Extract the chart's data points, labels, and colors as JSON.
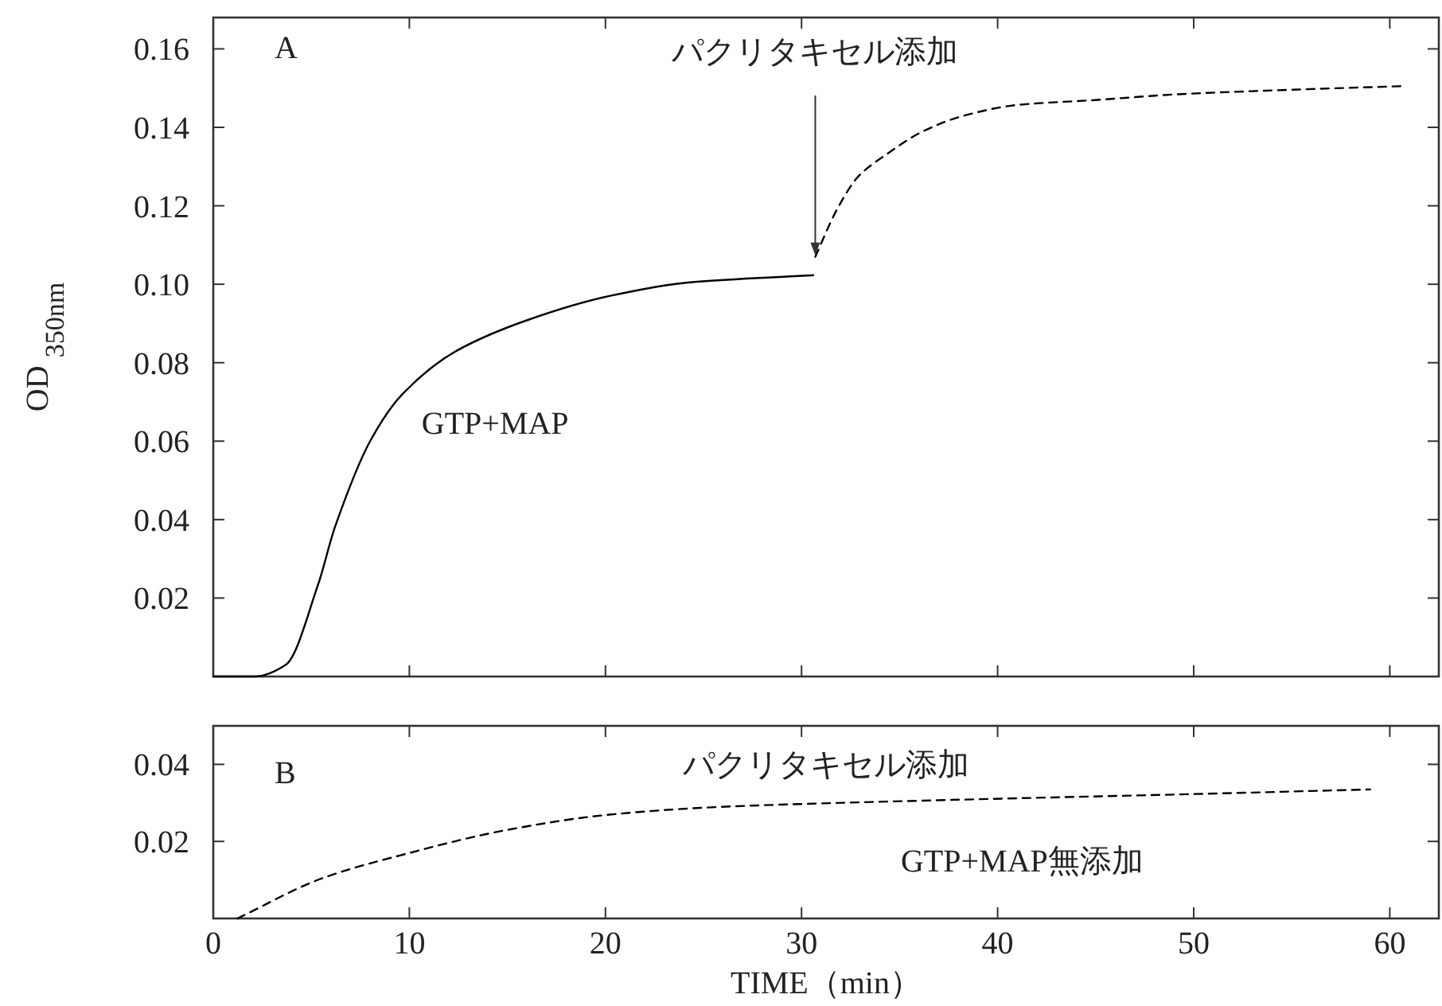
{
  "chart_data": [
    {
      "type": "line",
      "ylabel": "OD $_{350nm}$",
      "xlim": [
        0,
        62.5
      ],
      "ylim": [
        0,
        0.168
      ],
      "xticks": [
        {
          "value": 10,
          "label": null
        },
        {
          "value": 20,
          "label": null
        },
        {
          "value": 30,
          "label": null
        },
        {
          "value": 40,
          "label": null
        },
        {
          "value": 50,
          "label": null
        },
        {
          "value": 60,
          "label": null
        }
      ],
      "yticks": [
        0.02,
        0.04,
        0.06,
        0.08,
        {
          "value": 0.1,
          "label": "0.10"
        },
        0.12,
        0.14,
        0.16
      ],
      "tick_labels": "y",
      "series": [
        {
          "color": "#000000",
          "line_style": "solid",
          "x": [
            0,
            2.1,
            3.7,
            5.35,
            6.2,
            8.0,
            9.65,
            12.4,
            16.1,
            20.2,
            24.3,
            30.6
          ],
          "values": [
            0,
            0,
            0.003,
            0.0235,
            0.038,
            0.06,
            0.072,
            0.083,
            0.091,
            0.097,
            0.1005,
            0.1023
          ]
        },
        {
          "color": "#000000",
          "line_style": "dashed",
          "x": [
            30.7,
            31.8,
            32.9,
            34.3,
            36.2,
            38.3,
            41.0,
            45.1,
            49.1,
            54.5,
            60.6
          ],
          "values": [
            0.107,
            0.119,
            0.1275,
            0.133,
            0.139,
            0.143,
            0.1457,
            0.147,
            0.1484,
            0.1495,
            0.1505
          ]
        }
      ],
      "annotations": [
        "A",
        {
          "text": "パクリタキセル添加",
          "x": 30.7,
          "y": 0.107
        },
        "GTP+MAP"
      ]
    },
    {
      "type": "line",
      "xlabel": "TIME（min）",
      "xlim": [
        0,
        62.5
      ],
      "ylim": [
        0,
        0.05
      ],
      "xticks": [
        0,
        10,
        20,
        30,
        40,
        50,
        60
      ],
      "yticks": [
        0.02,
        0.04
      ],
      "series": [
        {
          "color": "#000000",
          "line_style": "dashed",
          "x": [
            1.23,
            5.54,
            10.0,
            14.9,
            20.1,
            25.2,
            29.9,
            40.2,
            50.1,
            59.0
          ],
          "values": [
            0,
            0.0104,
            0.017,
            0.0229,
            0.0269,
            0.0288,
            0.0297,
            0.0311,
            0.0323,
            0.0335
          ]
        }
      ],
      "annotations": [
        "B",
        "パクリタキセル添加",
        "GTP+MAP無添加"
      ]
    }
  ]
}
